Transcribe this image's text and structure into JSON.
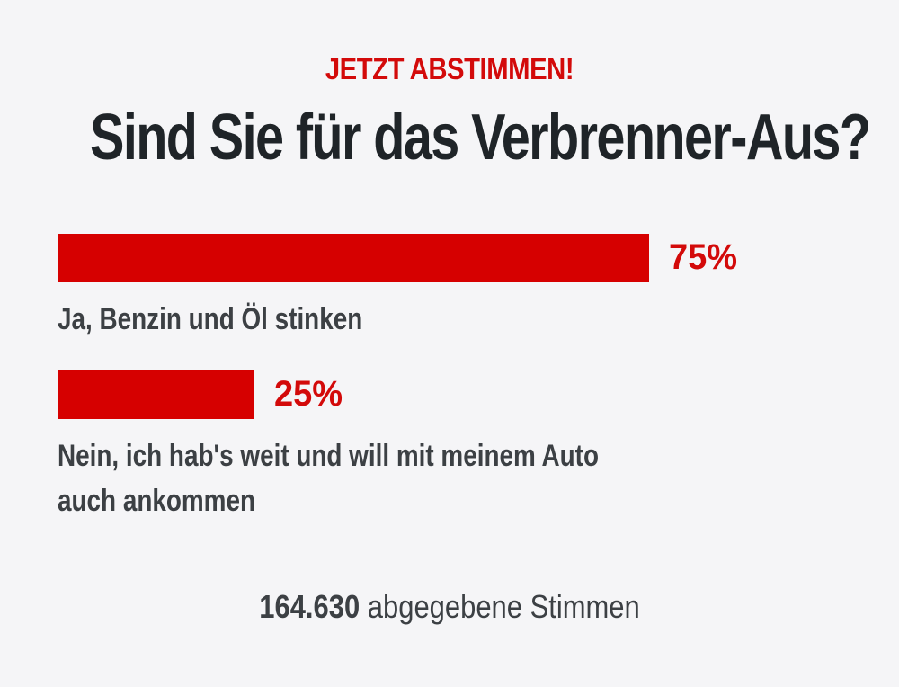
{
  "poll": {
    "kicker": "JETZT ABSTIMMEN!",
    "question": "Sind Sie für das Verbrenner-Aus?",
    "options": [
      {
        "percent": 75,
        "percent_label": "75%",
        "answer_lines": [
          "Ja, Benzin und Öl stinken"
        ]
      },
      {
        "percent": 25,
        "percent_label": "25%",
        "answer_lines": [
          "Nein, ich hab's weit und will mit meinem Auto",
          "auch ankommen"
        ]
      }
    ],
    "vote_count": "164.630",
    "vote_label": "abgegebene Stimmen",
    "accent_color": "#d60000",
    "text_color": "#3c4044",
    "background_color": "#f5f5f7"
  }
}
